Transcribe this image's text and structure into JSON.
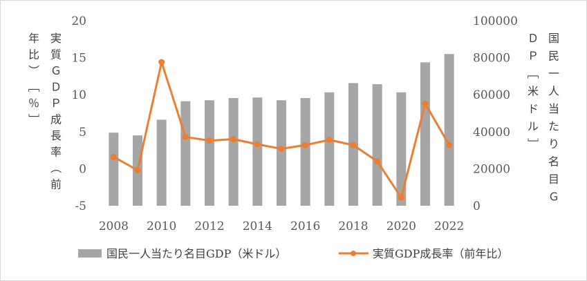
{
  "chart_data": {
    "type": "bar+line",
    "categories": [
      "2008",
      "2009",
      "2010",
      "2011",
      "2012",
      "2013",
      "2014",
      "2015",
      "2016",
      "2017",
      "2018",
      "2019",
      "2020",
      "2021",
      "2022"
    ],
    "series": [
      {
        "name": "国民一人当たり名目GDP（米ドル）",
        "type": "bar",
        "axis": "right",
        "color": "#a6a6a6",
        "values": [
          39500,
          38000,
          46500,
          56500,
          57000,
          58200,
          58500,
          57000,
          58200,
          61300,
          66300,
          65700,
          61300,
          77500,
          82000
        ]
      },
      {
        "name": "実質GDP成長率（前年比）",
        "type": "line",
        "axis": "left",
        "color": "#ed7d31",
        "values": [
          1.6,
          -0.2,
          14.4,
          4.3,
          3.8,
          4.0,
          3.3,
          2.7,
          3.2,
          3.9,
          3.2,
          1.0,
          -3.9,
          8.8,
          3.2
        ]
      }
    ],
    "left_axis": {
      "label": "実質ＧＤＰ成長率（前年比）［％］",
      "ylim": [
        -5,
        20
      ],
      "ticks": [
        "20",
        "15",
        "10",
        "5",
        "0",
        "-5"
      ]
    },
    "right_axis": {
      "label": "国民一人当たり名目ＧＤＰ［米ドル］",
      "ylim": [
        0,
        100000
      ],
      "ticks": [
        "100000",
        "80000",
        "60000",
        "40000",
        "20000",
        "0"
      ]
    },
    "x_tick_labels": [
      "2008",
      "2010",
      "2012",
      "2014",
      "2016",
      "2018",
      "2020",
      "2022"
    ],
    "legend": {
      "placement": "bottom",
      "bar_label": "国民一人当たり名目GDP（米ドル）",
      "line_label": "実質GDP成長率（前年比）"
    }
  }
}
